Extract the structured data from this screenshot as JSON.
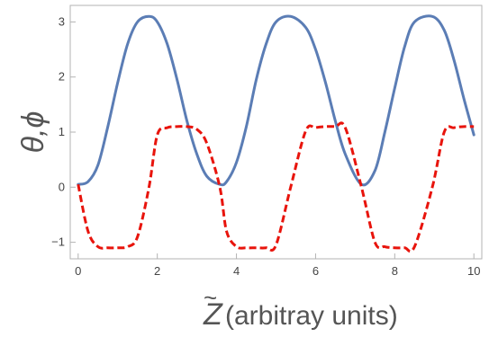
{
  "chart_data": {
    "type": "line",
    "title": "",
    "xlabel_symbol": "Z",
    "xlabel_units": " (arbitray units)",
    "ylabel": "θ,ϕ",
    "xlim": [
      -0.2,
      10.2
    ],
    "ylim": [
      -1.3,
      3.3
    ],
    "xticks": [
      0,
      2,
      4,
      6,
      8,
      10
    ],
    "yticks": [
      -1,
      0,
      1,
      2,
      3
    ],
    "grid": false,
    "legend": "none",
    "x": [
      0,
      0.25,
      0.5,
      0.75,
      1.0,
      1.25,
      1.5,
      1.79,
      2.0,
      2.25,
      2.5,
      2.75,
      3.0,
      3.25,
      3.58,
      3.75,
      4.0,
      4.25,
      4.5,
      4.75,
      5.0,
      5.37,
      5.75,
      6.0,
      6.25,
      6.5,
      6.75,
      7.16,
      7.5,
      7.75,
      8.0,
      8.25,
      8.5,
      8.95,
      9.25,
      9.5,
      9.75,
      10.0
    ],
    "series": [
      {
        "color": "#5B7DB5",
        "style": "solid",
        "values": [
          0.05,
          0.1,
          0.4,
          1.1,
          1.9,
          2.6,
          3.0,
          3.1,
          3.0,
          2.6,
          1.95,
          1.2,
          0.6,
          0.2,
          0.05,
          0.1,
          0.45,
          1.1,
          1.95,
          2.6,
          3.0,
          3.1,
          2.9,
          2.5,
          1.9,
          1.2,
          0.6,
          0.05,
          0.3,
          1.0,
          1.8,
          2.55,
          3.0,
          3.1,
          2.85,
          2.3,
          1.6,
          0.95
        ]
      },
      {
        "color": "#E8140C",
        "style": "dashed",
        "values": [
          0.05,
          -0.8,
          -1.08,
          -1.1,
          -1.1,
          -1.08,
          -0.9,
          0.0,
          0.95,
          1.08,
          1.1,
          1.1,
          1.05,
          0.8,
          0.0,
          -0.8,
          -1.08,
          -1.1,
          -1.1,
          -1.1,
          -1.05,
          0.0,
          1.02,
          1.08,
          1.1,
          1.1,
          1.08,
          0.0,
          -1.0,
          -1.08,
          -1.1,
          -1.1,
          -1.08,
          0.0,
          1.0,
          1.08,
          1.1,
          1.1
        ]
      }
    ]
  }
}
